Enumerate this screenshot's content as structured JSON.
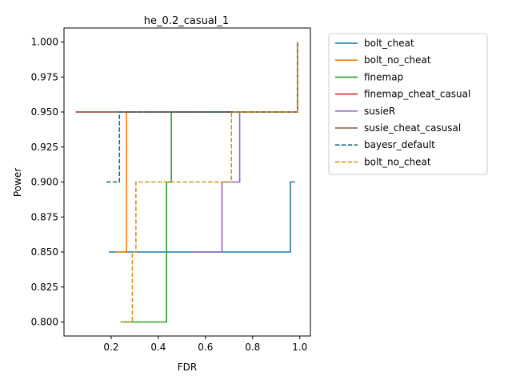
{
  "chart_data": {
    "type": "line",
    "title": "he_0.2_casual_1",
    "xlabel": "FDR",
    "ylabel": "Power",
    "xlim": [
      0.0,
      1.045
    ],
    "ylim": [
      0.79,
      1.01
    ],
    "xticks": [
      0.2,
      0.4,
      0.6,
      0.8,
      1.0
    ],
    "xtick_labels": [
      "0.2",
      "0.4",
      "0.6",
      "0.8",
      "1.0"
    ],
    "yticks": [
      0.8,
      0.825,
      0.85,
      0.875,
      0.9,
      0.925,
      0.95,
      0.975,
      1.0
    ],
    "ytick_labels": [
      "0.800",
      "0.825",
      "0.850",
      "0.875",
      "0.900",
      "0.925",
      "0.950",
      "0.975",
      "1.000"
    ],
    "grid": false,
    "legend_position": "outside-right",
    "step": true,
    "series": [
      {
        "name": "bolt_cheat",
        "color": "#1f77b4",
        "dash": "solid",
        "points": [
          [
            0.19,
            0.85
          ],
          [
            0.96,
            0.85
          ],
          [
            0.96,
            0.9
          ],
          [
            0.98,
            0.9
          ]
        ]
      },
      {
        "name": "bolt_no_cheat",
        "color": "#ff7f0e",
        "dash": "solid",
        "points": [
          [
            0.22,
            0.85
          ],
          [
            0.265,
            0.85
          ],
          [
            0.265,
            0.95
          ],
          [
            0.99,
            0.95
          ],
          [
            0.99,
            1.0
          ]
        ]
      },
      {
        "name": "finemap",
        "color": "#2ca02c",
        "dash": "solid",
        "points": [
          [
            0.24,
            0.8
          ],
          [
            0.435,
            0.8
          ],
          [
            0.435,
            0.9
          ],
          [
            0.455,
            0.9
          ],
          [
            0.455,
            0.95
          ],
          [
            0.99,
            0.95
          ],
          [
            0.99,
            1.0
          ]
        ]
      },
      {
        "name": "finemap_cheat_casual",
        "color": "#d62728",
        "dash": "solid",
        "points": [
          [
            0.05,
            0.95
          ],
          [
            0.99,
            0.95
          ],
          [
            0.99,
            1.0
          ]
        ]
      },
      {
        "name": "susieR",
        "color": "#9467bd",
        "dash": "solid",
        "points": [
          [
            0.54,
            0.85
          ],
          [
            0.67,
            0.85
          ],
          [
            0.67,
            0.9
          ],
          [
            0.745,
            0.9
          ],
          [
            0.745,
            0.95
          ],
          [
            0.99,
            0.95
          ],
          [
            0.99,
            1.0
          ]
        ]
      },
      {
        "name": "susie_cheat_casusal",
        "color": "#8c564b",
        "dash": "solid",
        "points": [
          [
            0.05,
            0.95
          ],
          [
            0.99,
            0.95
          ],
          [
            0.99,
            1.0
          ]
        ]
      },
      {
        "name": "bayesr_default",
        "color": "#1f6b7a",
        "dash": "dashed",
        "points": [
          [
            0.18,
            0.9
          ],
          [
            0.235,
            0.9
          ],
          [
            0.235,
            0.95
          ],
          [
            0.99,
            0.95
          ],
          [
            0.99,
            1.0
          ]
        ]
      },
      {
        "name": "bolt_no_cheat",
        "color": "#c89a1b",
        "dash": "dashed",
        "points": [
          [
            0.24,
            0.8
          ],
          [
            0.29,
            0.8
          ],
          [
            0.29,
            0.85
          ],
          [
            0.305,
            0.85
          ],
          [
            0.305,
            0.9
          ],
          [
            0.71,
            0.9
          ],
          [
            0.71,
            0.95
          ],
          [
            0.99,
            0.95
          ],
          [
            0.99,
            1.0
          ]
        ]
      }
    ]
  }
}
